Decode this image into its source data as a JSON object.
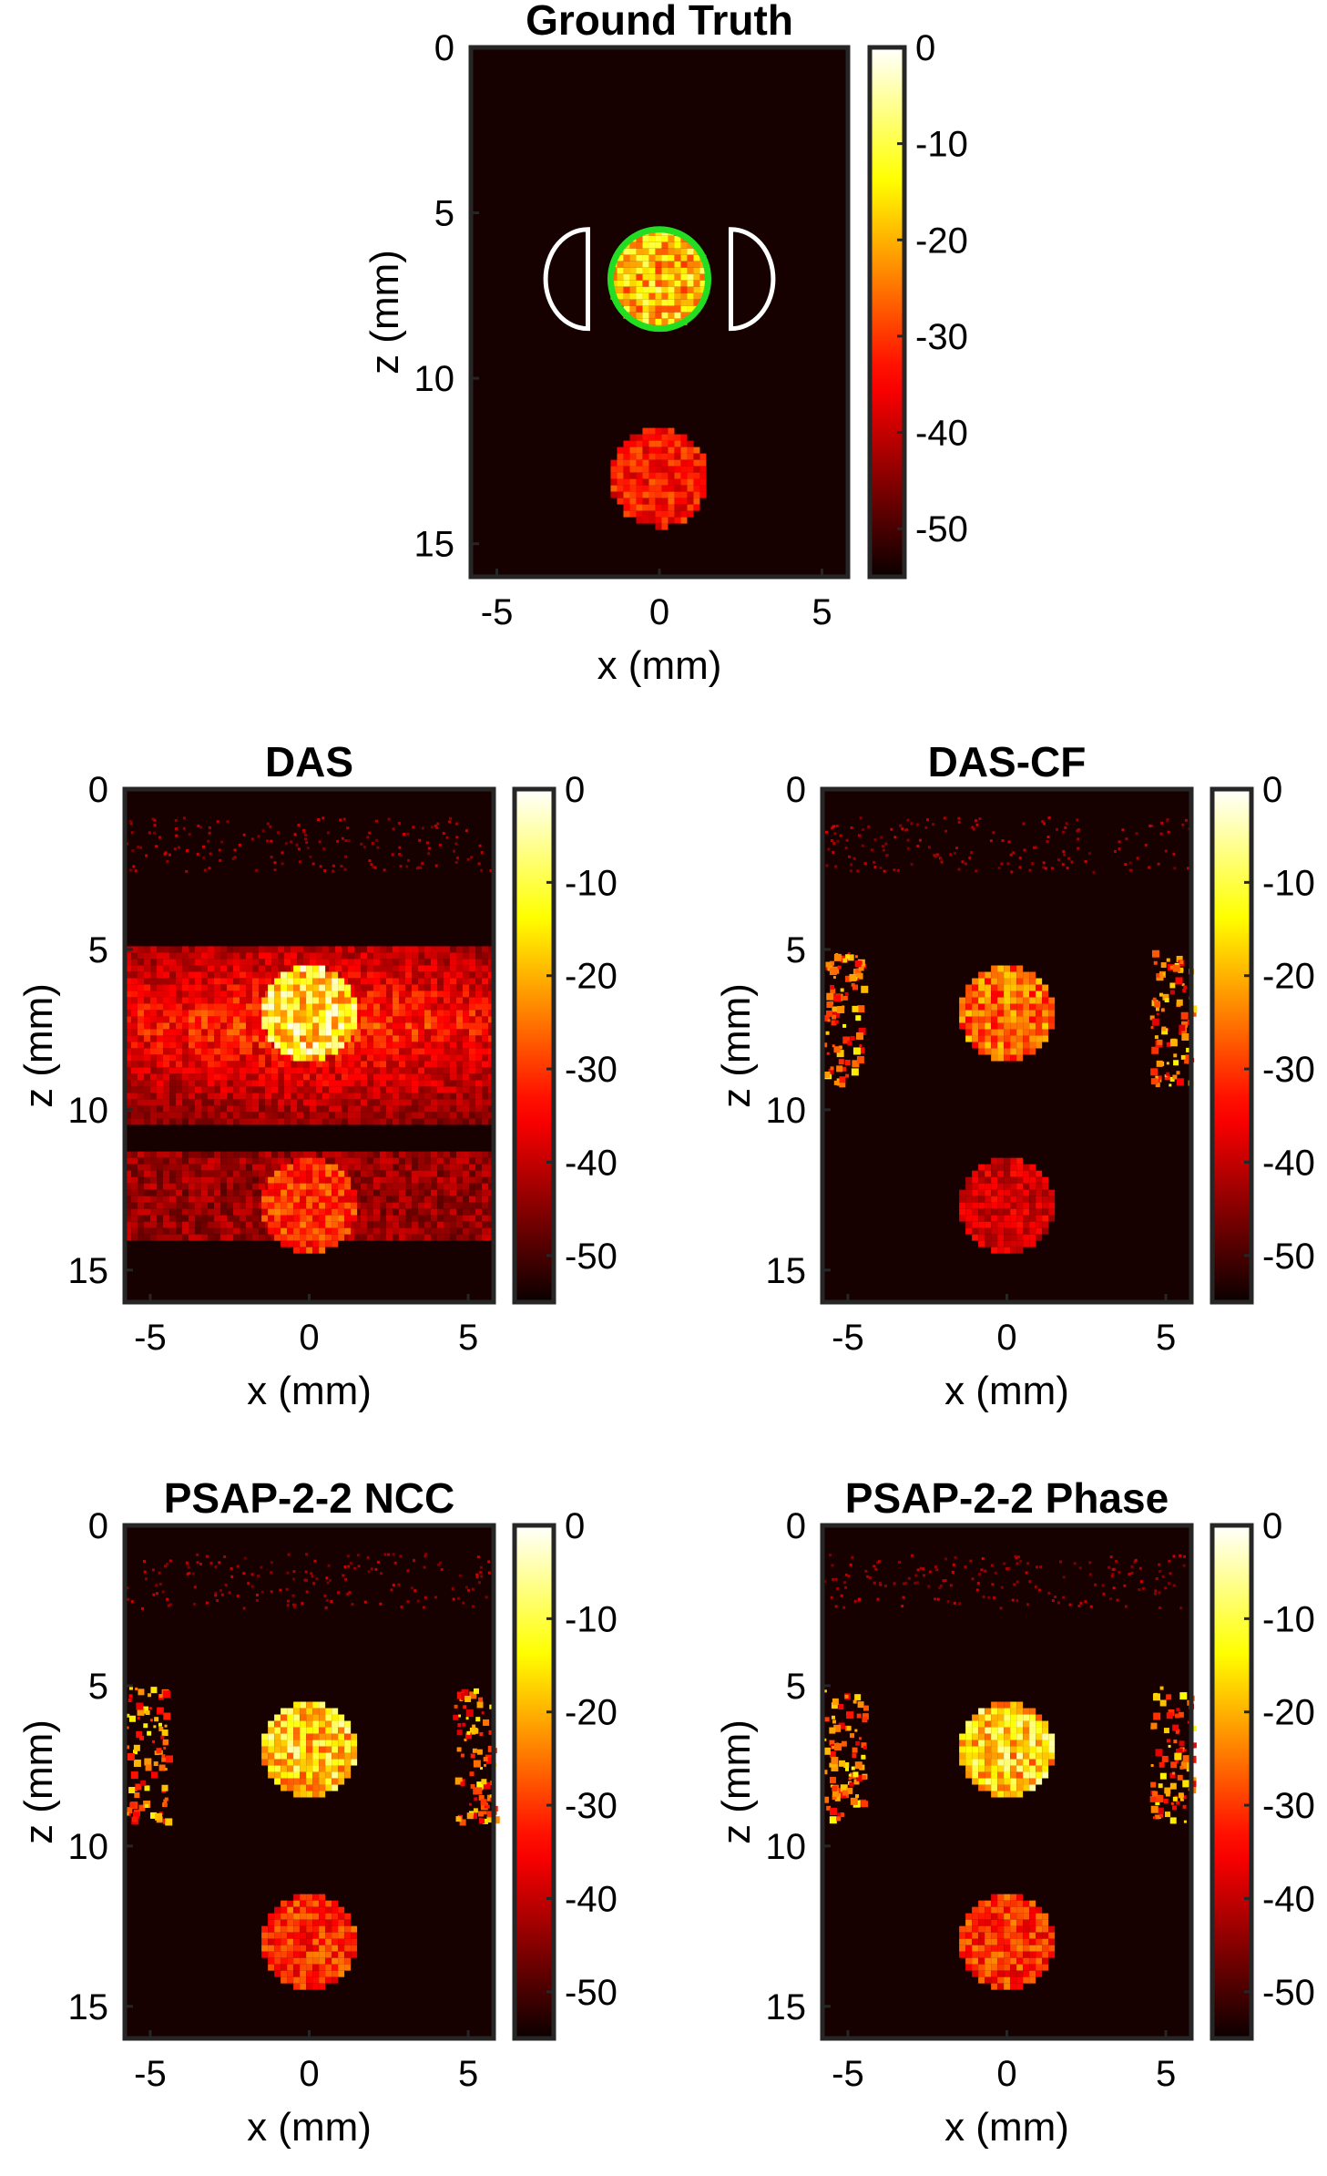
{
  "colormap": "hot",
  "colors": {
    "background": "#ffffff",
    "plot_bg": "#160000",
    "frame": "#262626",
    "roi_inner": "#22dd22",
    "roi_outer": "#ffffff"
  },
  "panels": [
    {
      "id": "ground-truth",
      "title": "Ground Truth",
      "xlabel": "x (mm)",
      "ylabel": "z (mm)",
      "xticks": [
        "-5",
        "0",
        "5"
      ],
      "yticks": [
        "0",
        "5",
        "10",
        "15"
      ],
      "cbar_ticks": [
        "0",
        "-10",
        "-20",
        "-30",
        "-40",
        "-50"
      ],
      "xlim": [
        -5.8,
        5.8
      ],
      "zlim": [
        0,
        16
      ],
      "cbar_range": [
        -55,
        0
      ],
      "roi_overlay": true,
      "regions": [
        {
          "cx": 0,
          "cz": 7,
          "r": 1.5,
          "level": 0.75
        },
        {
          "cx": 0,
          "cz": 13,
          "r": 1.5,
          "level": 0.45
        }
      ],
      "side_lobes": false,
      "smear": false
    },
    {
      "id": "das",
      "title": "DAS",
      "xlabel": "x (mm)",
      "ylabel": "z (mm)",
      "xticks": [
        "-5",
        "0",
        "5"
      ],
      "yticks": [
        "0",
        "5",
        "10",
        "15"
      ],
      "cbar_ticks": [
        "0",
        "-10",
        "-20",
        "-30",
        "-40",
        "-50"
      ],
      "xlim": [
        -5.8,
        5.8
      ],
      "zlim": [
        0,
        16
      ],
      "cbar_range": [
        -55,
        0
      ],
      "roi_overlay": false,
      "regions": [
        {
          "cx": 0,
          "cz": 7,
          "r": 1.5,
          "level": 0.85
        },
        {
          "cx": 0,
          "cz": 13,
          "r": 1.5,
          "level": 0.5
        }
      ],
      "side_lobes": false,
      "smear": true
    },
    {
      "id": "das-cf",
      "title": "DAS-CF",
      "xlabel": "x (mm)",
      "ylabel": "z (mm)",
      "xticks": [
        "-5",
        "0",
        "5"
      ],
      "yticks": [
        "0",
        "5",
        "10",
        "15"
      ],
      "cbar_ticks": [
        "0",
        "-10",
        "-20",
        "-30",
        "-40",
        "-50"
      ],
      "xlim": [
        -5.8,
        5.8
      ],
      "zlim": [
        0,
        16
      ],
      "cbar_range": [
        -55,
        0
      ],
      "roi_overlay": false,
      "regions": [
        {
          "cx": 0,
          "cz": 7,
          "r": 1.5,
          "level": 0.6
        },
        {
          "cx": 0,
          "cz": 13,
          "r": 1.5,
          "level": 0.35
        }
      ],
      "side_lobes": true,
      "smear": false
    },
    {
      "id": "psap-ncc",
      "title": "PSAP-2-2 NCC",
      "xlabel": "x (mm)",
      "ylabel": "z (mm)",
      "xticks": [
        "-5",
        "0",
        "5"
      ],
      "yticks": [
        "0",
        "5",
        "10",
        "15"
      ],
      "cbar_ticks": [
        "0",
        "-10",
        "-20",
        "-30",
        "-40",
        "-50"
      ],
      "xlim": [
        -5.8,
        5.8
      ],
      "zlim": [
        0,
        16
      ],
      "cbar_range": [
        -55,
        0
      ],
      "roi_overlay": false,
      "regions": [
        {
          "cx": 0,
          "cz": 7,
          "r": 1.5,
          "level": 0.8
        },
        {
          "cx": 0,
          "cz": 13,
          "r": 1.5,
          "level": 0.5
        }
      ],
      "side_lobes": true,
      "smear": false
    },
    {
      "id": "psap-phase",
      "title": "PSAP-2-2 Phase",
      "xlabel": "x (mm)",
      "ylabel": "z (mm)",
      "xticks": [
        "-5",
        "0",
        "5"
      ],
      "yticks": [
        "0",
        "5",
        "10",
        "15"
      ],
      "cbar_ticks": [
        "0",
        "-10",
        "-20",
        "-30",
        "-40",
        "-50"
      ],
      "xlim": [
        -5.8,
        5.8
      ],
      "zlim": [
        0,
        16
      ],
      "cbar_range": [
        -55,
        0
      ],
      "roi_overlay": false,
      "regions": [
        {
          "cx": 0,
          "cz": 7,
          "r": 1.5,
          "level": 0.8
        },
        {
          "cx": 0,
          "cz": 13,
          "r": 1.5,
          "level": 0.5
        }
      ],
      "side_lobes": true,
      "smear": false
    }
  ]
}
